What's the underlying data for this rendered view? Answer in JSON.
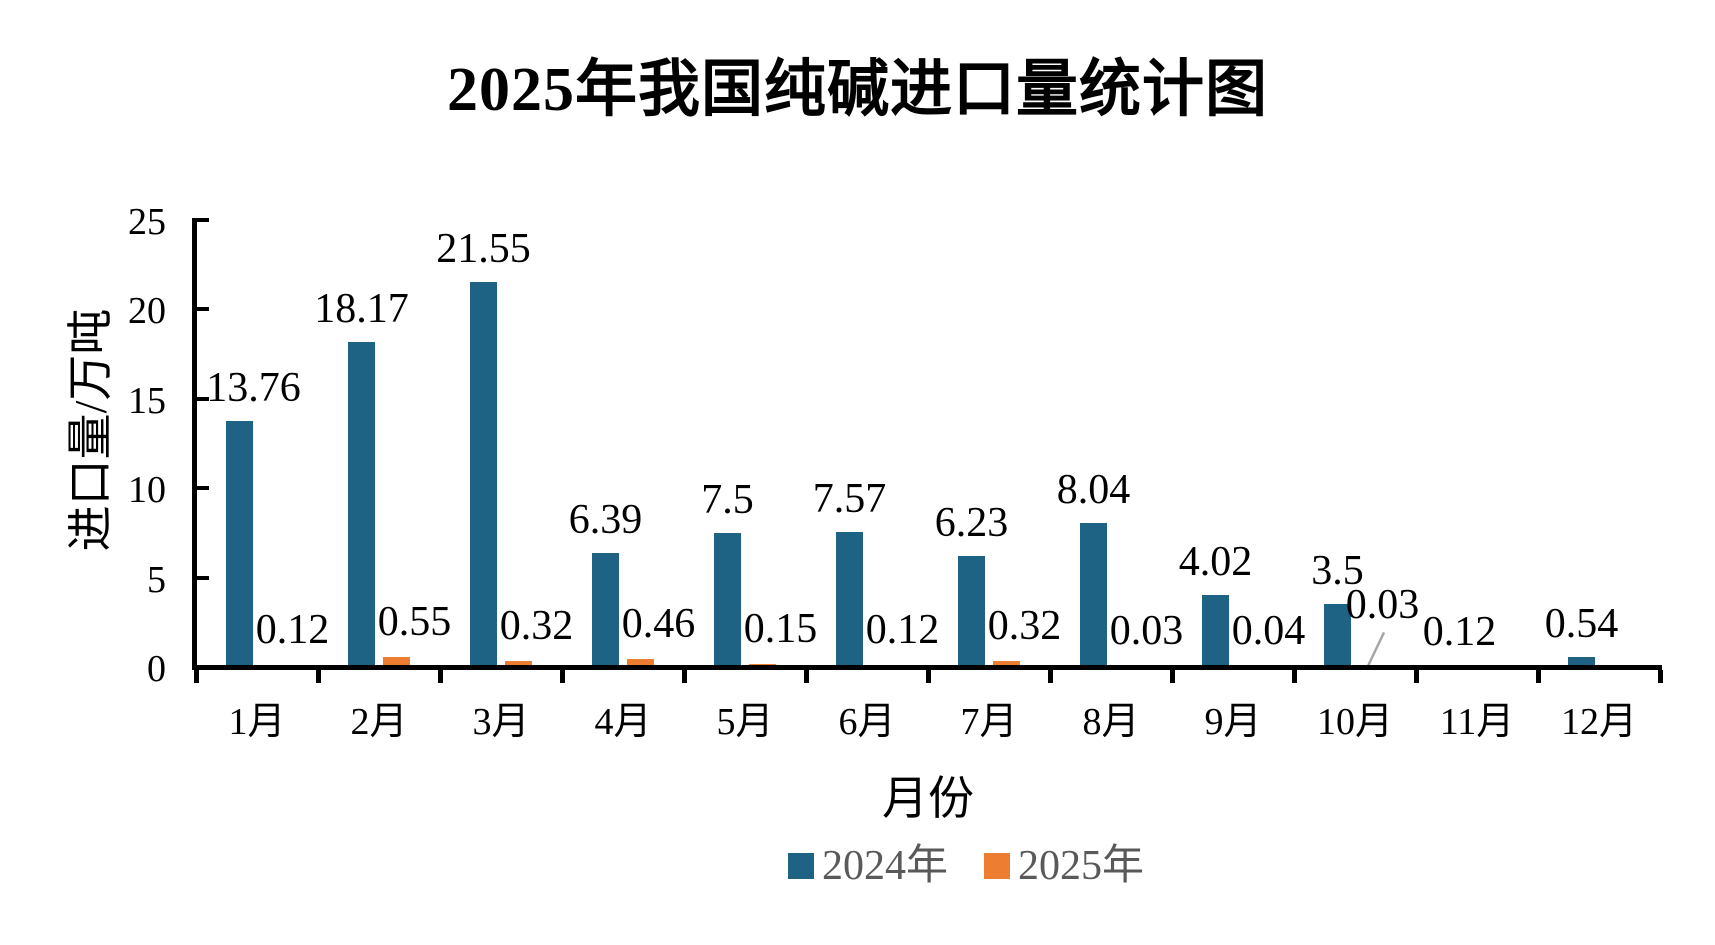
{
  "title": "2025年我国纯碱进口量统计图",
  "chart_data": {
    "type": "bar",
    "title": "2025年我国纯碱进口量统计图",
    "categories": [
      "1月",
      "2月",
      "3月",
      "4月",
      "5月",
      "6月",
      "7月",
      "8月",
      "9月",
      "10月",
      "11月",
      "12月"
    ],
    "series": [
      {
        "name": "2024年",
        "color": "#1F6384",
        "values": [
          13.76,
          18.17,
          21.55,
          6.39,
          7.5,
          7.57,
          6.23,
          8.04,
          4.02,
          3.5,
          0.12,
          0.54
        ]
      },
      {
        "name": "2025年",
        "color": "#ED7D31",
        "values": [
          0.12,
          0.55,
          0.32,
          0.46,
          0.15,
          0.12,
          0.32,
          0.03,
          0.04,
          0.03,
          null,
          null
        ]
      }
    ],
    "xlabel": "月份",
    "ylabel": "进口量/万吨",
    "ylim": [
      0,
      25
    ],
    "yticks": [
      0,
      5,
      10,
      15,
      20,
      25
    ],
    "grid": false,
    "data_labels": true,
    "legend_position": "bottom"
  },
  "legend": {
    "items": [
      {
        "label": "2024年",
        "color": "#1F6384"
      },
      {
        "label": "2025年",
        "color": "#ED7D31"
      }
    ]
  },
  "colors": {
    "series_2024": "#1F6384",
    "series_2025": "#ED7D31",
    "axis": "#000000",
    "legend_text": "#595959",
    "leader_line": "#A6A6A6",
    "background": "#FFFFFF"
  }
}
